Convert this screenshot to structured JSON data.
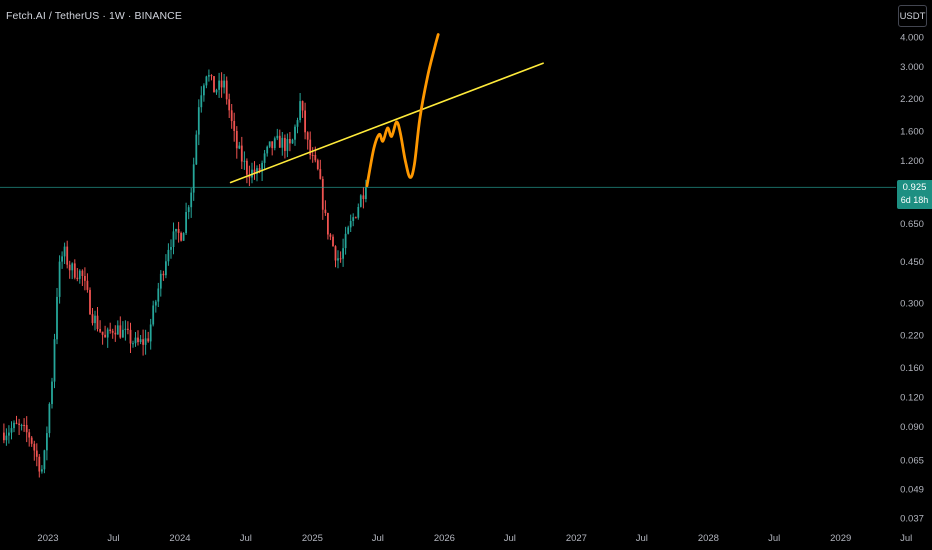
{
  "header": {
    "symbol_line": "Fetch.AI / TetherUS · 1W · BINANCE"
  },
  "price_scale": {
    "unit_button": "USDT",
    "current_price": "0.925",
    "countdown": "6d 18h"
  },
  "colors": {
    "background": "#000000",
    "up_candle": "#26a69a",
    "down_candle": "#ef5350",
    "trendline": "#ffeb3b",
    "projection": "#ff9800",
    "price_line": "#26a69a",
    "axis_text": "#b2b5be"
  },
  "chart_data": {
    "type": "candlestick",
    "scale": "log",
    "interval": "1W",
    "y_ticks": [
      4.0,
      3.0,
      2.2,
      1.6,
      1.2,
      0.925,
      0.65,
      0.45,
      0.3,
      0.22,
      0.16,
      0.12,
      0.09,
      0.065,
      0.049,
      0.037
    ],
    "y_tick_labels": [
      "4.000",
      "3.000",
      "2.200",
      "1.600",
      "1.200",
      "0.925",
      "0.650",
      "0.450",
      "0.300",
      "0.220",
      "0.160",
      "0.120",
      "0.090",
      "0.065",
      "0.049",
      "0.037"
    ],
    "x_ticks": [
      {
        "label": "2023",
        "date": "2023-01-01"
      },
      {
        "label": "Jul",
        "date": "2023-07-01"
      },
      {
        "label": "2024",
        "date": "2024-01-01"
      },
      {
        "label": "Jul",
        "date": "2024-07-01"
      },
      {
        "label": "2025",
        "date": "2025-01-01"
      },
      {
        "label": "Jul",
        "date": "2025-07-01"
      },
      {
        "label": "2026",
        "date": "2026-01-01"
      },
      {
        "label": "Jul",
        "date": "2026-07-01"
      },
      {
        "label": "2027",
        "date": "2027-01-01"
      },
      {
        "label": "Jul",
        "date": "2027-07-01"
      },
      {
        "label": "2028",
        "date": "2028-01-01"
      },
      {
        "label": "Jul",
        "date": "2028-07-01"
      },
      {
        "label": "2029",
        "date": "2029-01-01"
      },
      {
        "label": "Jul",
        "date": "2029-07-01"
      }
    ],
    "last_price": 0.925,
    "price_anchors": [
      [
        "2022-09-01",
        0.085
      ],
      [
        "2022-10-15",
        0.09
      ],
      [
        "2022-11-20",
        0.082
      ],
      [
        "2022-12-10",
        0.065
      ],
      [
        "2022-12-25",
        0.058
      ],
      [
        "2023-01-20",
        0.15
      ],
      [
        "2023-02-05",
        0.4
      ],
      [
        "2023-02-20",
        0.5
      ],
      [
        "2023-03-10",
        0.42
      ],
      [
        "2023-04-10",
        0.4
      ],
      [
        "2023-05-10",
        0.27
      ],
      [
        "2023-06-15",
        0.21
      ],
      [
        "2023-07-10",
        0.24
      ],
      [
        "2023-08-10",
        0.22
      ],
      [
        "2023-09-10",
        0.2
      ],
      [
        "2023-10-10",
        0.21
      ],
      [
        "2023-11-10",
        0.35
      ],
      [
        "2023-12-10",
        0.55
      ],
      [
        "2024-01-15",
        0.6
      ],
      [
        "2024-02-10",
        0.95
      ],
      [
        "2024-03-01",
        2.2
      ],
      [
        "2024-03-20",
        2.9
      ],
      [
        "2024-04-10",
        2.4
      ],
      [
        "2024-05-10",
        2.5
      ],
      [
        "2024-06-10",
        1.4
      ],
      [
        "2024-07-10",
        1.1
      ],
      [
        "2024-08-10",
        1.05
      ],
      [
        "2024-09-10",
        1.35
      ],
      [
        "2024-10-10",
        1.45
      ],
      [
        "2024-11-10",
        1.35
      ],
      [
        "2024-12-05",
        2.1
      ],
      [
        "2024-12-30",
        1.3
      ],
      [
        "2025-01-25",
        1.05
      ],
      [
        "2025-02-15",
        0.65
      ],
      [
        "2025-03-10",
        0.5
      ],
      [
        "2025-03-25",
        0.45
      ],
      [
        "2025-04-20",
        0.62
      ],
      [
        "2025-05-20",
        0.82
      ],
      [
        "2025-06-01",
        0.925
      ]
    ],
    "annotations": {
      "trendline": {
        "start": [
          "2024-05-20",
          0.97
        ],
        "end": [
          "2026-10-01",
          3.1
        ]
      },
      "projection": [
        [
          "2025-06-01",
          0.94
        ],
        [
          "2025-06-20",
          1.35
        ],
        [
          "2025-07-05",
          1.55
        ],
        [
          "2025-07-15",
          1.45
        ],
        [
          "2025-07-28",
          1.65
        ],
        [
          "2025-08-08",
          1.52
        ],
        [
          "2025-08-22",
          1.75
        ],
        [
          "2025-09-02",
          1.55
        ],
        [
          "2025-09-15",
          1.2
        ],
        [
          "2025-09-28",
          1.02
        ],
        [
          "2025-10-10",
          1.15
        ],
        [
          "2025-10-25",
          1.8
        ],
        [
          "2025-11-15",
          2.7
        ],
        [
          "2025-12-05",
          3.6
        ],
        [
          "2025-12-15",
          4.1
        ]
      ]
    }
  }
}
